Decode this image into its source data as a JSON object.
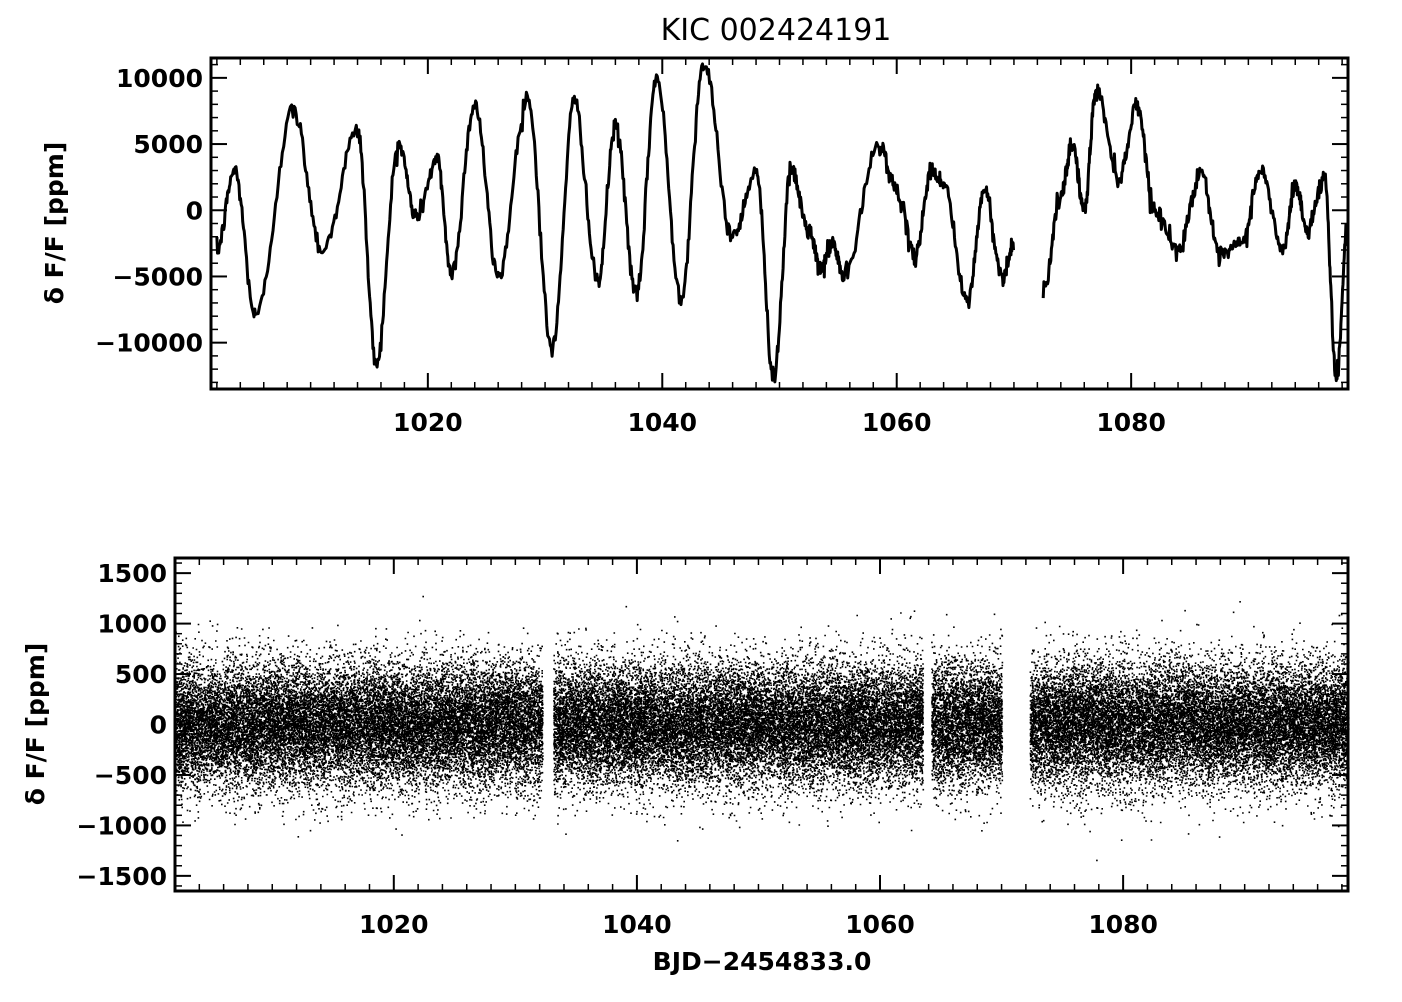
{
  "chart_data": [
    {
      "type": "line",
      "title": "KIC 002424191",
      "xlabel": "",
      "ylabel": "δ F/F [ppm]",
      "xlim": [
        1001.5,
        1098.5
      ],
      "ylim": [
        -13500,
        11500
      ],
      "xticks": [
        1020,
        1040,
        1060,
        1080
      ],
      "xtick_labels": [
        "1020",
        "1040",
        "1060",
        "1080"
      ],
      "yticks": [
        -10000,
        -5000,
        0,
        5000,
        10000
      ],
      "ytick_labels": [
        "−10000",
        "−5000",
        "0",
        "5000",
        "10000"
      ],
      "gaps": [
        [
          1070.2,
          1072.3
        ]
      ],
      "series": [
        {
          "x": [
            1002,
            1003.5,
            1005.3,
            1008.5,
            1011,
            1014,
            1015.6,
            1017.5,
            1019,
            1020.8,
            1022,
            1024,
            1026,
            1028.5,
            1030.6,
            1032.5,
            1034.5,
            1036,
            1037.8,
            1039.5,
            1041.6,
            1043.5,
            1046,
            1048,
            1049.5,
            1051,
            1052.5,
            1053.5,
            1054.5,
            1055.5,
            1058.5,
            1060,
            1061.5,
            1063,
            1064,
            1066,
            1067.5,
            1069,
            1070,
            1072.5,
            1074,
            1075,
            1076,
            1077,
            1079,
            1080.5,
            1082,
            1084,
            1086,
            1087.5,
            1089.5,
            1091,
            1093,
            1094,
            1095,
            1096.5,
            1097.5,
            1098.5
          ],
          "y": [
            -3000,
            3000,
            -8000,
            7500,
            -3000,
            6000,
            -11500,
            5000,
            -500,
            3800,
            -4800,
            8000,
            -5000,
            8500,
            -10500,
            8200,
            -5500,
            6300,
            -6500,
            10000,
            -6500,
            11000,
            -2000,
            3000,
            -12500,
            3000,
            -1500,
            -4500,
            -2500,
            -5000,
            5000,
            1500,
            -3500,
            3000,
            2000,
            -7000,
            1500,
            -5000,
            -2500,
            -6000,
            1000,
            5000,
            0,
            9000,
            2500,
            8000,
            0,
            -3000,
            3000,
            -3500,
            -2500,
            3000,
            -3000,
            2000,
            -1500,
            2500,
            -12500,
            -1000
          ]
        }
      ]
    },
    {
      "type": "scatter",
      "title": "",
      "xlabel": "BJD−2454833.0",
      "ylabel": "δ F/F [ppm]",
      "xlim": [
        1002,
        1098.5
      ],
      "ylim": [
        -1650,
        1650
      ],
      "xticks": [
        1020,
        1040,
        1060,
        1080
      ],
      "xtick_labels": [
        "1020",
        "1040",
        "1060",
        "1080"
      ],
      "yticks": [
        -1500,
        -1000,
        -500,
        0,
        500,
        1000,
        1500
      ],
      "ytick_labels": [
        "−1500",
        "−1000",
        "−500",
        "0",
        "500",
        "1000",
        "1500"
      ],
      "segments": [
        [
          1002,
          1032.2
        ],
        [
          1033.1,
          1063.5
        ],
        [
          1064.2,
          1070
        ],
        [
          1072.3,
          1098.5
        ]
      ],
      "noise_sigma_ppm": 300,
      "mean_ppm": 0
    }
  ]
}
